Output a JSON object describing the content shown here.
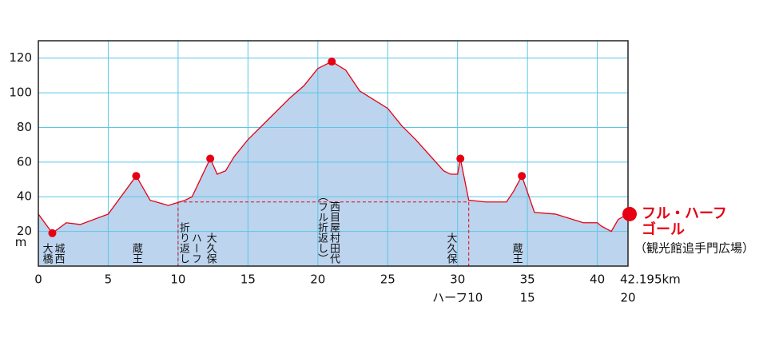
{
  "chart_data": {
    "type": "area",
    "x": [
      0,
      1,
      2,
      3,
      5,
      7,
      8,
      9.3,
      10.5,
      11,
      12.3,
      12.8,
      13.4,
      14,
      15,
      16.5,
      18,
      19,
      20,
      21,
      22,
      23,
      25,
      26,
      27,
      28,
      29,
      29.5,
      30,
      30.2,
      30.8,
      32,
      33.5,
      34,
      34.6,
      35.5,
      37,
      39,
      40,
      40.3,
      41,
      41.5,
      42.195
    ],
    "values": [
      30,
      19,
      25,
      24,
      30,
      52,
      38,
      35,
      38,
      40,
      62,
      53,
      55,
      63,
      73,
      85,
      97,
      104,
      114,
      118,
      113,
      101,
      91,
      81,
      73,
      64,
      55,
      53,
      53,
      62,
      38,
      37,
      37,
      43,
      52,
      31,
      30,
      25,
      25,
      23,
      20,
      27,
      30
    ],
    "color": "#e60012",
    "fill": "#bcd4ee",
    "markers": {
      "x": [
        1,
        7,
        12.3,
        21,
        30.2,
        34.6
      ],
      "values": [
        19,
        52,
        62,
        118,
        62,
        52
      ]
    },
    "xlim": [
      0,
      42.195
    ],
    "ylim": [
      0,
      130
    ],
    "xticks": [
      0,
      5,
      10,
      15,
      20,
      25,
      30,
      35,
      40,
      {
        "value": 42.195,
        "label": "42.195km"
      }
    ],
    "yticks": [
      20,
      40,
      60,
      80,
      100,
      120
    ],
    "y_unit": "m",
    "half_ticks": [
      {
        "value": 30,
        "label": "ハーフ10"
      },
      {
        "value": 35,
        "label": "15"
      },
      {
        "value": 42.195,
        "label": "20"
      }
    ],
    "half_course": {
      "x": [
        10,
        30.8
      ],
      "value": 37
    },
    "places": [
      {
        "x": 1,
        "columns": [
          "城西",
          "大橋"
        ]
      },
      {
        "x": 7,
        "columns": [
          "蔵王"
        ]
      },
      {
        "x": 10.8,
        "columns": [
          "ハーフ",
          "折り返し"
        ]
      },
      {
        "x": 12.3,
        "columns": [
          "大久保"
        ]
      },
      {
        "x": 20.7,
        "columns": [
          "西目屋村田代",
          "（フル折返し）"
        ]
      },
      {
        "x": 29.5,
        "columns": [
          "大久保"
        ]
      },
      {
        "x": 34.2,
        "columns": [
          "蔵王"
        ]
      }
    ],
    "goal": {
      "x": 42.195,
      "value": 30,
      "title": [
        "フル・ハーフ",
        "ゴール"
      ],
      "place": "（観光館追手門広場）"
    },
    "grid": true
  }
}
